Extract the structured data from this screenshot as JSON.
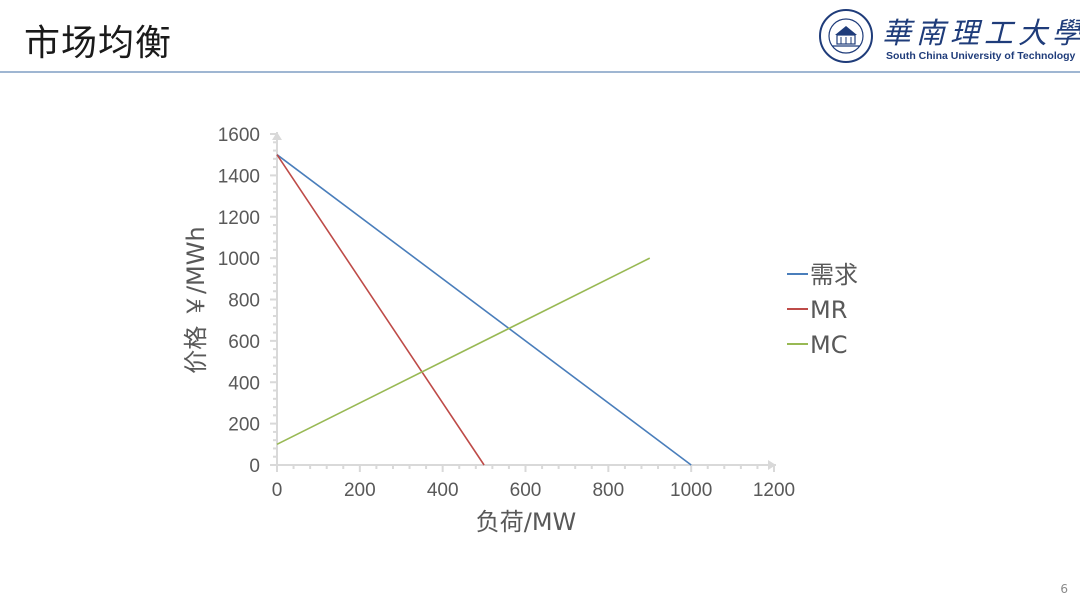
{
  "slide": {
    "title": "市场均衡",
    "page_number": "6"
  },
  "logo": {
    "chinese_name": "華南理工大學",
    "english_name": "South China University of Technology",
    "icon": "university-seal-icon"
  },
  "colors": {
    "demand": "#4a7ebb",
    "mr": "#be4b48",
    "mc": "#98b954",
    "axis": "#d9d9d9",
    "text": "#595959",
    "title_rule": "#9fb6d2"
  },
  "chart_data": {
    "type": "line",
    "xlabel": "负荷/MW",
    "ylabel": "价格 ￥/MWh",
    "xlim": [
      0,
      1200
    ],
    "ylim": [
      0,
      1600
    ],
    "x_ticks": [
      0,
      200,
      400,
      600,
      800,
      1000,
      1200
    ],
    "y_ticks": [
      0,
      200,
      400,
      600,
      800,
      1000,
      1200,
      1400,
      1600
    ],
    "grid": false,
    "legend_position": "right",
    "series": [
      {
        "name": "需求",
        "x": [
          0,
          1000
        ],
        "y": [
          1500,
          0
        ]
      },
      {
        "name": "MR",
        "x": [
          0,
          500
        ],
        "y": [
          1500,
          0
        ]
      },
      {
        "name": "MC",
        "x": [
          0,
          900
        ],
        "y": [
          100,
          1000
        ]
      }
    ]
  }
}
